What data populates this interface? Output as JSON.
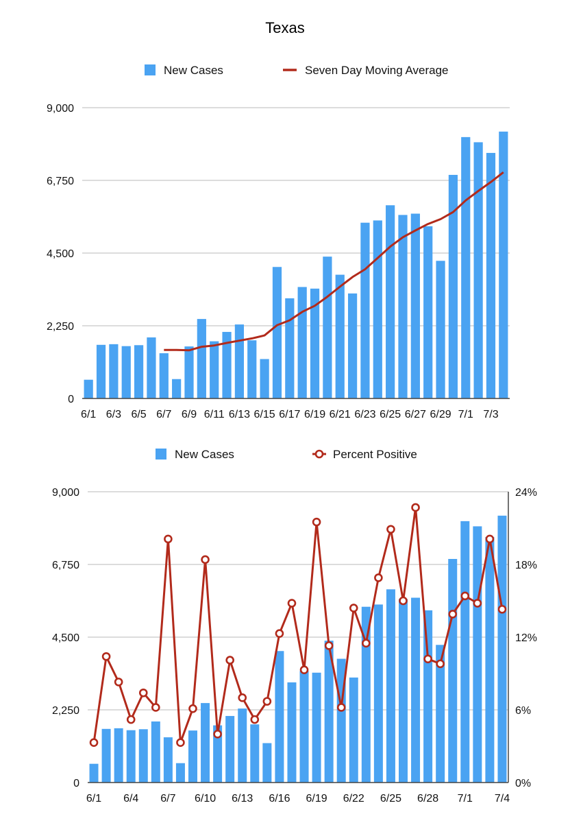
{
  "page_title": "Texas",
  "colors": {
    "bar": "#4aa3f2",
    "line": "#b22a1b",
    "grid": "#c8c8c8",
    "axis": "#444444"
  },
  "chart_data": [
    {
      "type": "bar",
      "title": "Texas",
      "xlabel": "",
      "ylabel": "",
      "ylim": [
        0,
        9000
      ],
      "yticks": [
        "0",
        "2,250",
        "4,500",
        "6,750",
        "9,000"
      ],
      "xtick_labels": [
        "6/1",
        "6/3",
        "6/5",
        "6/7",
        "6/9",
        "6/11",
        "6/13",
        "6/15",
        "6/17",
        "6/19",
        "6/21",
        "6/23",
        "6/25",
        "6/27",
        "6/29",
        "7/1",
        "7/3"
      ],
      "legend": [
        "New Cases",
        "Seven Day Moving Average"
      ],
      "legend_position": "top",
      "categories": [
        "6/1",
        "6/2",
        "6/3",
        "6/4",
        "6/5",
        "6/6",
        "6/7",
        "6/8",
        "6/9",
        "6/10",
        "6/11",
        "6/12",
        "6/13",
        "6/14",
        "6/15",
        "6/16",
        "6/17",
        "6/18",
        "6/19",
        "6/20",
        "6/21",
        "6/22",
        "6/23",
        "6/24",
        "6/25",
        "6/26",
        "6/27",
        "6/28",
        "6/29",
        "6/30",
        "7/1",
        "7/2",
        "7/3",
        "7/4"
      ],
      "series": [
        {
          "name": "New Cases",
          "kind": "bar",
          "values": [
            580,
            1660,
            1680,
            1620,
            1650,
            1890,
            1400,
            600,
            1610,
            2460,
            1770,
            2060,
            2290,
            1800,
            1220,
            4070,
            3100,
            3450,
            3400,
            4390,
            3830,
            3250,
            5440,
            5510,
            5980,
            5680,
            5720,
            5330,
            4260,
            6920,
            8090,
            7930,
            7600,
            8260
          ]
        },
        {
          "name": "Seven Day Moving Average",
          "kind": "line",
          "values": [
            null,
            null,
            null,
            null,
            null,
            null,
            1500,
            1500,
            1490,
            1600,
            1640,
            1720,
            1790,
            1860,
            1950,
            2270,
            2420,
            2680,
            2870,
            3150,
            3460,
            3760,
            4000,
            4350,
            4700,
            4990,
            5200,
            5400,
            5550,
            5770,
            6130,
            6420,
            6700,
            7000
          ]
        }
      ]
    },
    {
      "type": "bar",
      "title": "",
      "xlabel": "",
      "ylabel": "",
      "ylim": [
        0,
        9000
      ],
      "y2lim": [
        0,
        24
      ],
      "yticks": [
        "0",
        "2,250",
        "4,500",
        "6,750",
        "9,000"
      ],
      "y2ticks": [
        "0%",
        "6%",
        "12%",
        "18%",
        "24%"
      ],
      "xtick_labels": [
        "6/1",
        "6/4",
        "6/7",
        "6/10",
        "6/13",
        "6/16",
        "6/19",
        "6/22",
        "6/25",
        "6/28",
        "7/1",
        "7/4"
      ],
      "legend": [
        "New Cases",
        "Percent Positive"
      ],
      "legend_position": "top",
      "categories": [
        "6/1",
        "6/2",
        "6/3",
        "6/4",
        "6/5",
        "6/6",
        "6/7",
        "6/8",
        "6/9",
        "6/10",
        "6/11",
        "6/12",
        "6/13",
        "6/14",
        "6/15",
        "6/16",
        "6/17",
        "6/18",
        "6/19",
        "6/20",
        "6/21",
        "6/22",
        "6/23",
        "6/24",
        "6/25",
        "6/26",
        "6/27",
        "6/28",
        "6/29",
        "6/30",
        "7/1",
        "7/2",
        "7/3",
        "7/4"
      ],
      "series": [
        {
          "name": "New Cases",
          "kind": "bar",
          "axis": "left",
          "values": [
            580,
            1660,
            1680,
            1620,
            1650,
            1890,
            1400,
            600,
            1610,
            2460,
            1770,
            2060,
            2290,
            1800,
            1220,
            4070,
            3100,
            3450,
            3400,
            4390,
            3830,
            3250,
            5440,
            5510,
            5980,
            5680,
            5720,
            5330,
            4260,
            6920,
            8090,
            7930,
            7600,
            8260
          ]
        },
        {
          "name": "Percent Positive",
          "kind": "line-marker",
          "axis": "right",
          "values": [
            3.3,
            10.4,
            8.3,
            5.2,
            7.4,
            6.2,
            20.1,
            3.3,
            6.1,
            18.4,
            4.0,
            10.1,
            7.0,
            5.2,
            6.7,
            12.3,
            14.8,
            9.3,
            21.5,
            11.3,
            6.2,
            14.4,
            11.5,
            16.9,
            20.9,
            15.0,
            22.7,
            10.2,
            9.8,
            13.9,
            15.4,
            14.8,
            20.1,
            14.3
          ]
        }
      ]
    }
  ]
}
